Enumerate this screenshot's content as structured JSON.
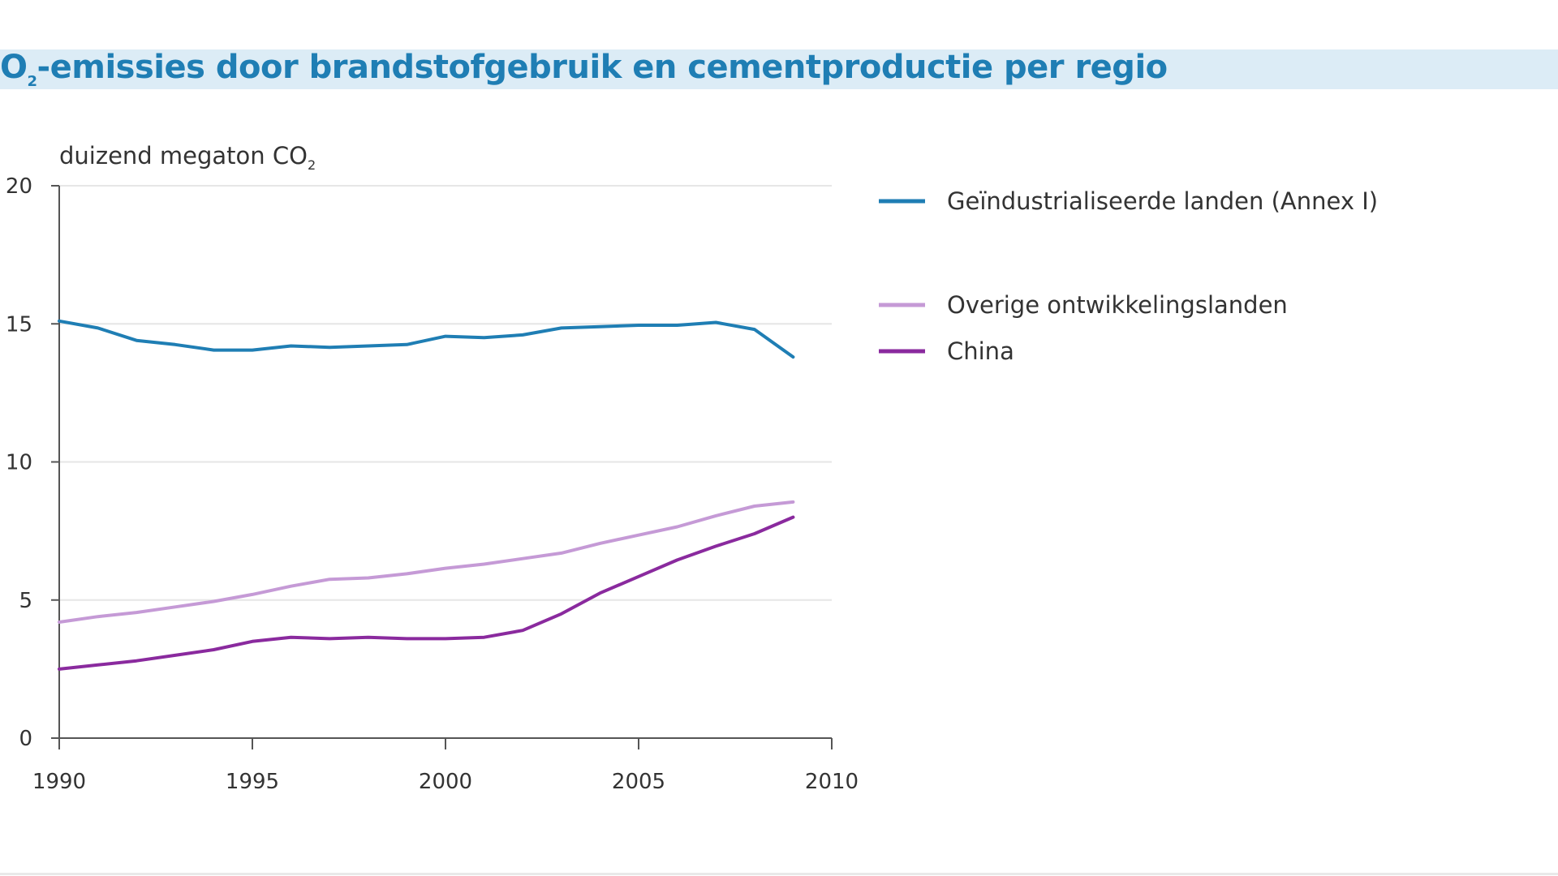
{
  "title": {
    "prefix": "O",
    "sub": "2",
    "rest": "-emissies door brandstofgebruik en cementproductie per regio"
  },
  "colors": {
    "industrialized": "#1f7eb4",
    "other_developing": "#c59ad6",
    "china": "#8a2a9e",
    "axis": "#555555",
    "grid": "#e6e6e6",
    "title_band": "#dcecf6",
    "title_text": "#1f7eb4"
  },
  "chart_data": {
    "type": "line",
    "ylabel": "duizend megaton CO",
    "ylabel_sub": "2",
    "xlabel": "",
    "xlim": [
      1990,
      2010
    ],
    "ylim": [
      0,
      20
    ],
    "xticks": [
      "1990",
      "1995",
      "2000",
      "2005",
      "2010"
    ],
    "yticks": [
      "0",
      "5",
      "10",
      "15",
      "20"
    ],
    "x": [
      1990,
      1991,
      1992,
      1993,
      1994,
      1995,
      1996,
      1997,
      1998,
      1999,
      2000,
      2001,
      2002,
      2003,
      2004,
      2005,
      2006,
      2007,
      2008,
      2009
    ],
    "series": [
      {
        "key": "industrialized",
        "name": "Geïndustrialiseerde landen (Annex I)",
        "values": [
          15.1,
          14.85,
          14.4,
          14.25,
          14.05,
          14.05,
          14.2,
          14.15,
          14.2,
          14.25,
          14.55,
          14.5,
          14.6,
          14.85,
          14.9,
          14.95,
          14.95,
          15.05,
          14.8,
          13.8
        ]
      },
      {
        "key": "other_developing",
        "name": "Overige ontwikkelingslanden",
        "values": [
          4.2,
          4.4,
          4.55,
          4.75,
          4.95,
          5.2,
          5.5,
          5.75,
          5.8,
          5.95,
          6.15,
          6.3,
          6.5,
          6.7,
          7.05,
          7.35,
          7.65,
          8.05,
          8.4,
          8.55
        ]
      },
      {
        "key": "china",
        "name": "China",
        "values": [
          2.5,
          2.65,
          2.8,
          3.0,
          3.2,
          3.5,
          3.65,
          3.6,
          3.65,
          3.6,
          3.6,
          3.65,
          3.9,
          4.5,
          5.25,
          5.85,
          6.45,
          6.95,
          7.4,
          8.0
        ]
      }
    ]
  }
}
